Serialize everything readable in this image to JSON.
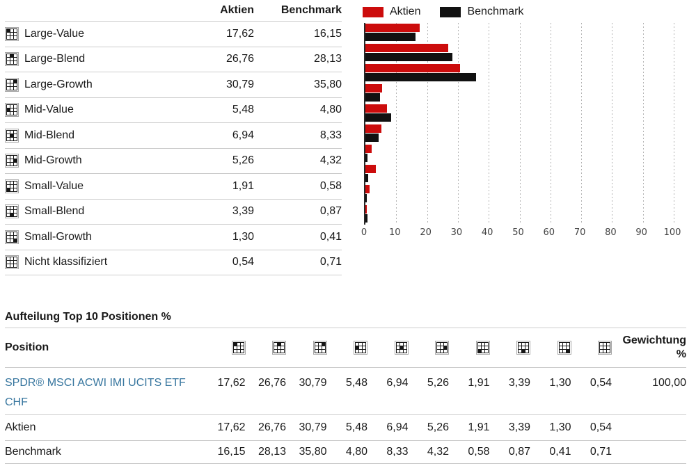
{
  "allocation_table": {
    "headers": {
      "aktien": "Aktien",
      "benchmark": "Benchmark"
    },
    "rows": [
      {
        "label": "Large-Value",
        "box_cell": 0,
        "aktien": "17,62",
        "benchmark": "16,15"
      },
      {
        "label": "Large-Blend",
        "box_cell": 1,
        "aktien": "26,76",
        "benchmark": "28,13"
      },
      {
        "label": "Large-Growth",
        "box_cell": 2,
        "aktien": "30,79",
        "benchmark": "35,80"
      },
      {
        "label": "Mid-Value",
        "box_cell": 3,
        "aktien": "5,48",
        "benchmark": "4,80"
      },
      {
        "label": "Mid-Blend",
        "box_cell": 4,
        "aktien": "6,94",
        "benchmark": "8,33"
      },
      {
        "label": "Mid-Growth",
        "box_cell": 5,
        "aktien": "5,26",
        "benchmark": "4,32"
      },
      {
        "label": "Small-Value",
        "box_cell": 6,
        "aktien": "1,91",
        "benchmark": "0,58"
      },
      {
        "label": "Small-Blend",
        "box_cell": 7,
        "aktien": "3,39",
        "benchmark": "0,87"
      },
      {
        "label": "Small-Growth",
        "box_cell": 8,
        "aktien": "1,30",
        "benchmark": "0,41"
      },
      {
        "label": "Nicht klassifiziert",
        "box_cell": -1,
        "aktien": "0,54",
        "benchmark": "0,71"
      }
    ]
  },
  "chart_data": {
    "type": "bar",
    "orientation": "horizontal",
    "title": "",
    "categories": [
      "Large-Value",
      "Large-Blend",
      "Large-Growth",
      "Mid-Value",
      "Mid-Blend",
      "Mid-Growth",
      "Small-Value",
      "Small-Blend",
      "Small-Growth",
      "Nicht klassifiziert"
    ],
    "series": [
      {
        "name": "Aktien",
        "color": "#CC0C0C",
        "values": [
          17.62,
          26.76,
          30.79,
          5.48,
          6.94,
          5.26,
          1.91,
          3.39,
          1.3,
          0.54
        ]
      },
      {
        "name": "Benchmark",
        "color": "#111111",
        "values": [
          16.15,
          28.13,
          35.8,
          4.8,
          8.33,
          4.32,
          0.58,
          0.87,
          0.41,
          0.71
        ]
      }
    ],
    "xlim": [
      0,
      100
    ],
    "xticks": [
      0,
      10,
      20,
      30,
      40,
      50,
      60,
      70,
      80,
      90,
      100
    ],
    "grid": "vertical-dotted",
    "legend_position": "top"
  },
  "positions_table": {
    "heading": "Aufteilung Top 10 Positionen %",
    "position_header": "Position",
    "weight_header": [
      "Gewichtung",
      "%"
    ],
    "box_columns": [
      0,
      1,
      2,
      3,
      4,
      5,
      6,
      7,
      8,
      -1
    ],
    "rows": [
      {
        "name": "SPDR® MSCI ACWI IMI UCITS ETF CHF",
        "is_link": true,
        "values": [
          "17,62",
          "26,76",
          "30,79",
          "5,48",
          "6,94",
          "5,26",
          "1,91",
          "3,39",
          "1,30",
          "0,54"
        ],
        "weight": "100,00"
      },
      {
        "name": "Aktien",
        "is_link": false,
        "values": [
          "17,62",
          "26,76",
          "30,79",
          "5,48",
          "6,94",
          "5,26",
          "1,91",
          "3,39",
          "1,30",
          "0,54"
        ],
        "weight": ""
      },
      {
        "name": "Benchmark",
        "is_link": false,
        "values": [
          "16,15",
          "28,13",
          "35,80",
          "4,80",
          "8,33",
          "4,32",
          "0,58",
          "0,87",
          "0,41",
          "0,71"
        ],
        "weight": ""
      }
    ]
  },
  "colors": {
    "aktien_red": "#CC0C0C",
    "benchmark_black": "#111111",
    "link_blue": "#36759E",
    "divider": "#cccccc"
  }
}
